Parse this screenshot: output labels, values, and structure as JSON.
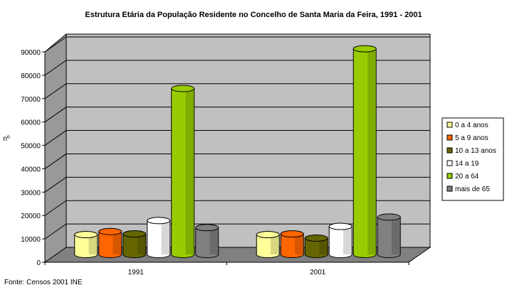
{
  "chart_data": {
    "type": "bar",
    "title": "Estrutura Etária da População Residente no Concelho de Santa Maria da Feira, 1991 - 2001",
    "ylabel": "nº",
    "xlabel": "",
    "categories": [
      "1991",
      "2001"
    ],
    "ylim": [
      0,
      90000
    ],
    "yticks": [
      "0",
      "10000",
      "20000",
      "30000",
      "40000",
      "50000",
      "60000",
      "70000",
      "80000",
      "90000"
    ],
    "grid": true,
    "legend_position": "right",
    "series": [
      {
        "name": "0 a 4 anos",
        "color": "#FFFF99",
        "values": [
          8500,
          8500
        ]
      },
      {
        "name": "5 a 9 anos",
        "color": "#FF6600",
        "values": [
          9800,
          8800
        ]
      },
      {
        "name": "10 a 13 anos",
        "color": "#666600",
        "values": [
          8800,
          7000
        ]
      },
      {
        "name": "14 a 19",
        "color": "#FFFFFF",
        "values": [
          14500,
          12000
        ]
      },
      {
        "name": "20 a 64",
        "color": "#99CC00",
        "values": [
          71000,
          88000
        ]
      },
      {
        "name": "mais de 65",
        "color": "#808080",
        "values": [
          11500,
          16000
        ]
      }
    ],
    "source": "Fonte: Censos 2001 INE"
  }
}
